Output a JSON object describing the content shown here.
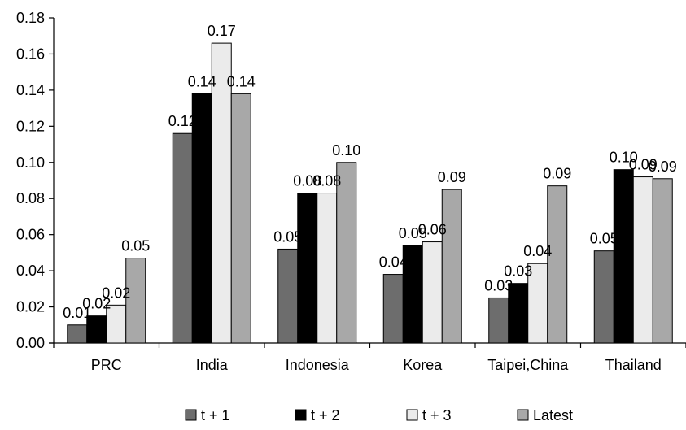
{
  "chart_data": {
    "type": "bar",
    "title": "",
    "xlabel": "",
    "ylabel": "",
    "categories": [
      "PRC",
      "India",
      "Indonesia",
      "Korea",
      "Taipei,China",
      "Thailand"
    ],
    "ylim": [
      0,
      0.18
    ],
    "yticks": [
      "0.00",
      "0.02",
      "0.04",
      "0.06",
      "0.08",
      "0.10",
      "0.12",
      "0.14",
      "0.16",
      "0.18"
    ],
    "grid": false,
    "legend_position": "bottom",
    "series": [
      {
        "name": "t + 1",
        "color": "#6d6d6d",
        "values": [
          0.01,
          0.116,
          0.052,
          0.038,
          0.025,
          0.051
        ],
        "labels": [
          "0.01",
          "0.12",
          "0.05",
          "0.04",
          "0.03",
          "0.05"
        ]
      },
      {
        "name": "t + 2",
        "color": "#000000",
        "values": [
          0.015,
          0.138,
          0.083,
          0.054,
          0.033,
          0.096
        ],
        "labels": [
          "0.02",
          "0.14",
          "0.08",
          "0.05",
          "0.03",
          "0.10"
        ]
      },
      {
        "name": "t + 3",
        "color": "#ebebeb",
        "values": [
          0.021,
          0.166,
          0.083,
          0.056,
          0.044,
          0.092
        ],
        "labels": [
          "0.02",
          "0.17",
          "0.08",
          "0.06",
          "0.04",
          "0.09"
        ]
      },
      {
        "name": "Latest",
        "color": "#a8a8a8",
        "values": [
          0.047,
          0.138,
          0.1,
          0.085,
          0.087,
          0.091
        ],
        "labels": [
          "0.05",
          "0.14",
          "0.10",
          "0.09",
          "0.09",
          "0.09"
        ]
      }
    ]
  }
}
